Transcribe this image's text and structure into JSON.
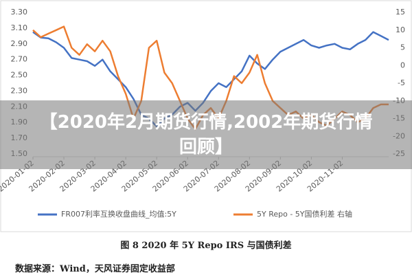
{
  "chart_data": {
    "type": "line",
    "categories": [
      "2020-01-02",
      null,
      null,
      null,
      "2020-02-02",
      null,
      null,
      null,
      "2020-03-02",
      null,
      null,
      null,
      "2020-04-02",
      null,
      null,
      null,
      "2020-05-02",
      null,
      null,
      null,
      "2020-06-02",
      null,
      null,
      null,
      "2020-07-02",
      null,
      null,
      null,
      "2020-08-02",
      null,
      null,
      null,
      "2020-09-02",
      null,
      null,
      null,
      "2020-10-02",
      null,
      null,
      null,
      "2020-11-02",
      null,
      null,
      null,
      null,
      null,
      null
    ],
    "series": [
      {
        "name": "FR007利率互换收盘曲线_均值:5Y",
        "color": "#4472c4",
        "values": [
          3.05,
          2.98,
          2.97,
          2.92,
          2.85,
          2.72,
          2.7,
          2.68,
          2.62,
          2.7,
          2.55,
          2.45,
          2.35,
          2.2,
          2.0,
          1.95,
          1.85,
          1.95,
          2.0,
          2.1,
          2.15,
          2.05,
          2.15,
          2.3,
          2.4,
          2.35,
          2.45,
          2.55,
          2.75,
          2.65,
          2.58,
          2.7,
          2.8,
          2.85,
          2.9,
          2.95,
          2.88,
          2.85,
          2.88,
          2.9,
          2.85,
          2.83,
          2.9,
          2.95,
          3.05,
          3.0,
          2.95
        ]
      },
      {
        "name": "5Y Repo - 5Y国债利差 右轴",
        "color": "#ed7d31",
        "axis": "y2",
        "values": [
          10,
          8,
          9,
          10,
          11,
          5,
          3,
          6,
          4,
          7,
          4,
          -3,
          -8,
          -15,
          -10,
          5,
          7,
          -2,
          -5,
          -10,
          -15,
          -18,
          -14,
          -12,
          -15,
          -10,
          -3,
          -5,
          -2,
          3,
          -5,
          -10,
          -12,
          -14,
          -13,
          -15,
          -14,
          -16,
          -17,
          -15,
          -13,
          -14,
          -16,
          -15,
          -12,
          -11,
          -11
        ]
      }
    ],
    "ylim": [
      1.5,
      3.3
    ],
    "yticks": [
      {
        "value": 1.5,
        "label": "1.50"
      },
      {
        "value": 1.7,
        "label": "1.70"
      },
      {
        "value": 1.9,
        "label": "1.90"
      },
      {
        "value": 2.1,
        "label": "2.10"
      },
      {
        "value": 2.3,
        "label": "2.30"
      },
      {
        "value": 2.5,
        "label": "2.50"
      },
      {
        "value": 2.7,
        "label": "2.70"
      },
      {
        "value": 2.9,
        "label": "2.90"
      },
      {
        "value": 3.1,
        "label": "3.10"
      },
      {
        "value": 3.3,
        "label": "3.30"
      }
    ],
    "y2lim": [
      -25,
      15
    ],
    "y2ticks": [
      -25,
      -20,
      -15,
      -10,
      -5,
      0,
      5,
      10,
      15
    ],
    "grid": false
  },
  "banner_title": "【2020年2月期货行情,2002年期货行情回顾】",
  "caption": "图 8 2020 年 5Y Repo IRS 与国债利差",
  "source": "数据来源：Wind，天风证券固定收益部"
}
